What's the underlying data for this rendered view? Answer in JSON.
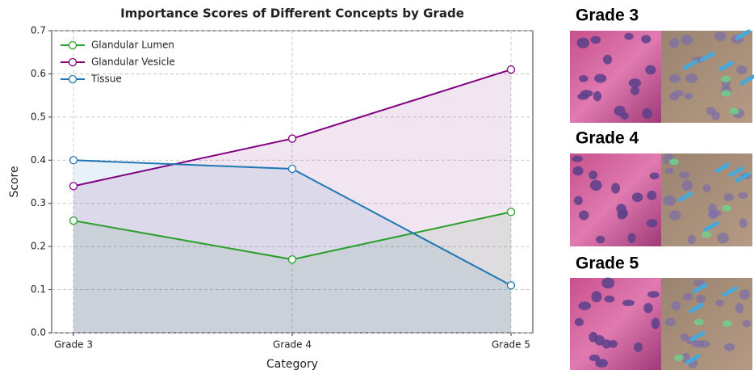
{
  "chart_data": {
    "type": "line",
    "title": "Importance Scores of Different Concepts by Grade",
    "x_label": "Category",
    "y_label": "Score",
    "categories": [
      "Grade 3",
      "Grade 4",
      "Grade 5"
    ],
    "series": [
      {
        "name": "Glandular Lumen",
        "color": "#2ca02c",
        "values": [
          0.26,
          0.17,
          0.28
        ]
      },
      {
        "name": "Glandular Vesicle",
        "color": "#800080",
        "values": [
          0.34,
          0.45,
          0.61
        ]
      },
      {
        "name": "Tissue",
        "color": "#1f77b4",
        "values": [
          0.4,
          0.38,
          0.11
        ]
      }
    ],
    "ylim": [
      0,
      0.7
    ],
    "yticks": [
      {
        "value": 0,
        "label": "0.0"
      },
      0.1,
      0.2,
      0.3,
      0.4,
      0.5,
      0.6,
      0.7
    ],
    "grid": true,
    "fill_area": true,
    "legend": "upper-left"
  },
  "side_panel": {
    "labels": [
      "Grade 3",
      "Grade 4",
      "Grade 5"
    ]
  }
}
